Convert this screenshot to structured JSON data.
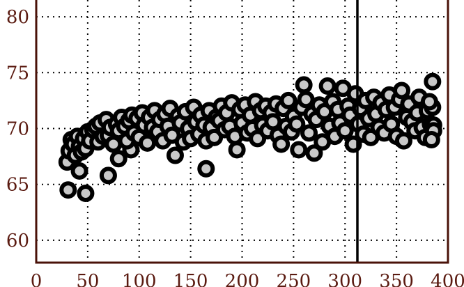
{
  "chart_data": {
    "type": "scatter",
    "title": "",
    "xlabel": "",
    "ylabel": "",
    "xlim": [
      0,
      400
    ],
    "ylim": [
      58,
      81.5
    ],
    "xticks": [
      0,
      50,
      100,
      150,
      200,
      250,
      300,
      350,
      400
    ],
    "yticks": [
      60,
      65,
      70,
      75,
      80
    ],
    "grid": true,
    "reference_line_x": 312,
    "colors": {
      "axis": "#4a1208",
      "tick_text": "#5a1a10",
      "marker_fill": "#c8c8c8",
      "marker_edge": "#000000"
    },
    "series": [
      {
        "marker": "circle",
        "points": [
          [
            31,
            64.5
          ],
          [
            48,
            64.2
          ],
          [
            70,
            65.8
          ],
          [
            165,
            66.4
          ],
          [
            42,
            66.2
          ],
          [
            80,
            67.3
          ],
          [
            92,
            68.1
          ],
          [
            30,
            67.0
          ],
          [
            32,
            68.0
          ],
          [
            34,
            69.0
          ],
          [
            36,
            68.6
          ],
          [
            38,
            67.6
          ],
          [
            40,
            69.3
          ],
          [
            42,
            68.4
          ],
          [
            44,
            67.9
          ],
          [
            46,
            69.1
          ],
          [
            48,
            68.2
          ],
          [
            50,
            69.7
          ],
          [
            52,
            68.9
          ],
          [
            55,
            69.9
          ],
          [
            58,
            70.2
          ],
          [
            60,
            68.8
          ],
          [
            62,
            70.5
          ],
          [
            65,
            69.3
          ],
          [
            68,
            70.8
          ],
          [
            70,
            69.4
          ],
          [
            72,
            70.1
          ],
          [
            75,
            68.6
          ],
          [
            78,
            70.4
          ],
          [
            80,
            69.8
          ],
          [
            83,
            71.0
          ],
          [
            86,
            70.2
          ],
          [
            88,
            68.9
          ],
          [
            90,
            70.7
          ],
          [
            93,
            71.2
          ],
          [
            95,
            69.6
          ],
          [
            98,
            70.9
          ],
          [
            100,
            69.2
          ],
          [
            103,
            71.4
          ],
          [
            105,
            70.3
          ],
          [
            108,
            68.7
          ],
          [
            110,
            71.0
          ],
          [
            113,
            70.1
          ],
          [
            115,
            71.6
          ],
          [
            118,
            69.7
          ],
          [
            120,
            70.8
          ],
          [
            123,
            68.9
          ],
          [
            125,
            71.3
          ],
          [
            128,
            70.2
          ],
          [
            130,
            71.8
          ],
          [
            132,
            69.4
          ],
          [
            135,
            67.6
          ],
          [
            138,
            71.1
          ],
          [
            140,
            70.5
          ],
          [
            143,
            68.8
          ],
          [
            145,
            71.5
          ],
          [
            148,
            70.0
          ],
          [
            150,
            69.1
          ],
          [
            153,
            71.9
          ],
          [
            155,
            70.6
          ],
          [
            158,
            69.5
          ],
          [
            160,
            71.2
          ],
          [
            163,
            70.3
          ],
          [
            165,
            68.9
          ],
          [
            168,
            71.6
          ],
          [
            170,
            70.1
          ],
          [
            173,
            69.2
          ],
          [
            175,
            71.0
          ],
          [
            178,
            70.7
          ],
          [
            180,
            72.0
          ],
          [
            183,
            69.9
          ],
          [
            185,
            71.4
          ],
          [
            188,
            70.2
          ],
          [
            190,
            72.3
          ],
          [
            193,
            69.3
          ],
          [
            195,
            68.1
          ],
          [
            198,
            71.7
          ],
          [
            200,
            70.5
          ],
          [
            203,
            72.1
          ],
          [
            205,
            69.6
          ],
          [
            208,
            71.2
          ],
          [
            210,
            70.0
          ],
          [
            213,
            72.4
          ],
          [
            215,
            69.1
          ],
          [
            218,
            71.6
          ],
          [
            220,
            70.3
          ],
          [
            223,
            72.0
          ],
          [
            225,
            69.8
          ],
          [
            228,
            71.4
          ],
          [
            230,
            70.6
          ],
          [
            233,
            72.2
          ],
          [
            235,
            69.4
          ],
          [
            238,
            68.6
          ],
          [
            240,
            71.8
          ],
          [
            243,
            70.2
          ],
          [
            245,
            72.5
          ],
          [
            248,
            69.7
          ],
          [
            250,
            71.1
          ],
          [
            253,
            70.4
          ],
          [
            255,
            68.1
          ],
          [
            258,
            71.9
          ],
          [
            260,
            73.9
          ],
          [
            262,
            72.6
          ],
          [
            265,
            69.6
          ],
          [
            268,
            71.3
          ],
          [
            270,
            67.8
          ],
          [
            272,
            70.8
          ],
          [
            275,
            72.1
          ],
          [
            278,
            68.8
          ],
          [
            280,
            71.5
          ],
          [
            283,
            73.8
          ],
          [
            285,
            70.2
          ],
          [
            288,
            72.4
          ],
          [
            290,
            69.3
          ],
          [
            293,
            71.7
          ],
          [
            295,
            70.5
          ],
          [
            298,
            73.6
          ],
          [
            300,
            69.8
          ],
          [
            303,
            72.0
          ],
          [
            305,
            71.2
          ],
          [
            308,
            68.6
          ],
          [
            310,
            73.1
          ],
          [
            313,
            70.4
          ],
          [
            315,
            71.8
          ],
          [
            318,
            69.5
          ],
          [
            320,
            72.5
          ],
          [
            323,
            70.9
          ],
          [
            325,
            69.2
          ],
          [
            328,
            72.8
          ],
          [
            330,
            71.3
          ],
          [
            333,
            70.1
          ],
          [
            335,
            72.3
          ],
          [
            338,
            69.6
          ],
          [
            340,
            71.7
          ],
          [
            343,
            73.0
          ],
          [
            345,
            70.4
          ],
          [
            348,
            71.9
          ],
          [
            350,
            69.3
          ],
          [
            353,
            72.6
          ],
          [
            355,
            73.4
          ],
          [
            357,
            68.9
          ],
          [
            360,
            71.0
          ],
          [
            362,
            72.2
          ],
          [
            365,
            70.6
          ],
          [
            368,
            69.8
          ],
          [
            370,
            71.4
          ],
          [
            372,
            72.8
          ],
          [
            375,
            70.1
          ],
          [
            378,
            69.2
          ],
          [
            380,
            71.6
          ],
          [
            383,
            70.4
          ],
          [
            385,
            74.2
          ],
          [
            385,
            71.9
          ],
          [
            386,
            70.3
          ],
          [
            386,
            69.8
          ],
          [
            384,
            69.0
          ],
          [
            382,
            72.4
          ]
        ]
      }
    ]
  }
}
